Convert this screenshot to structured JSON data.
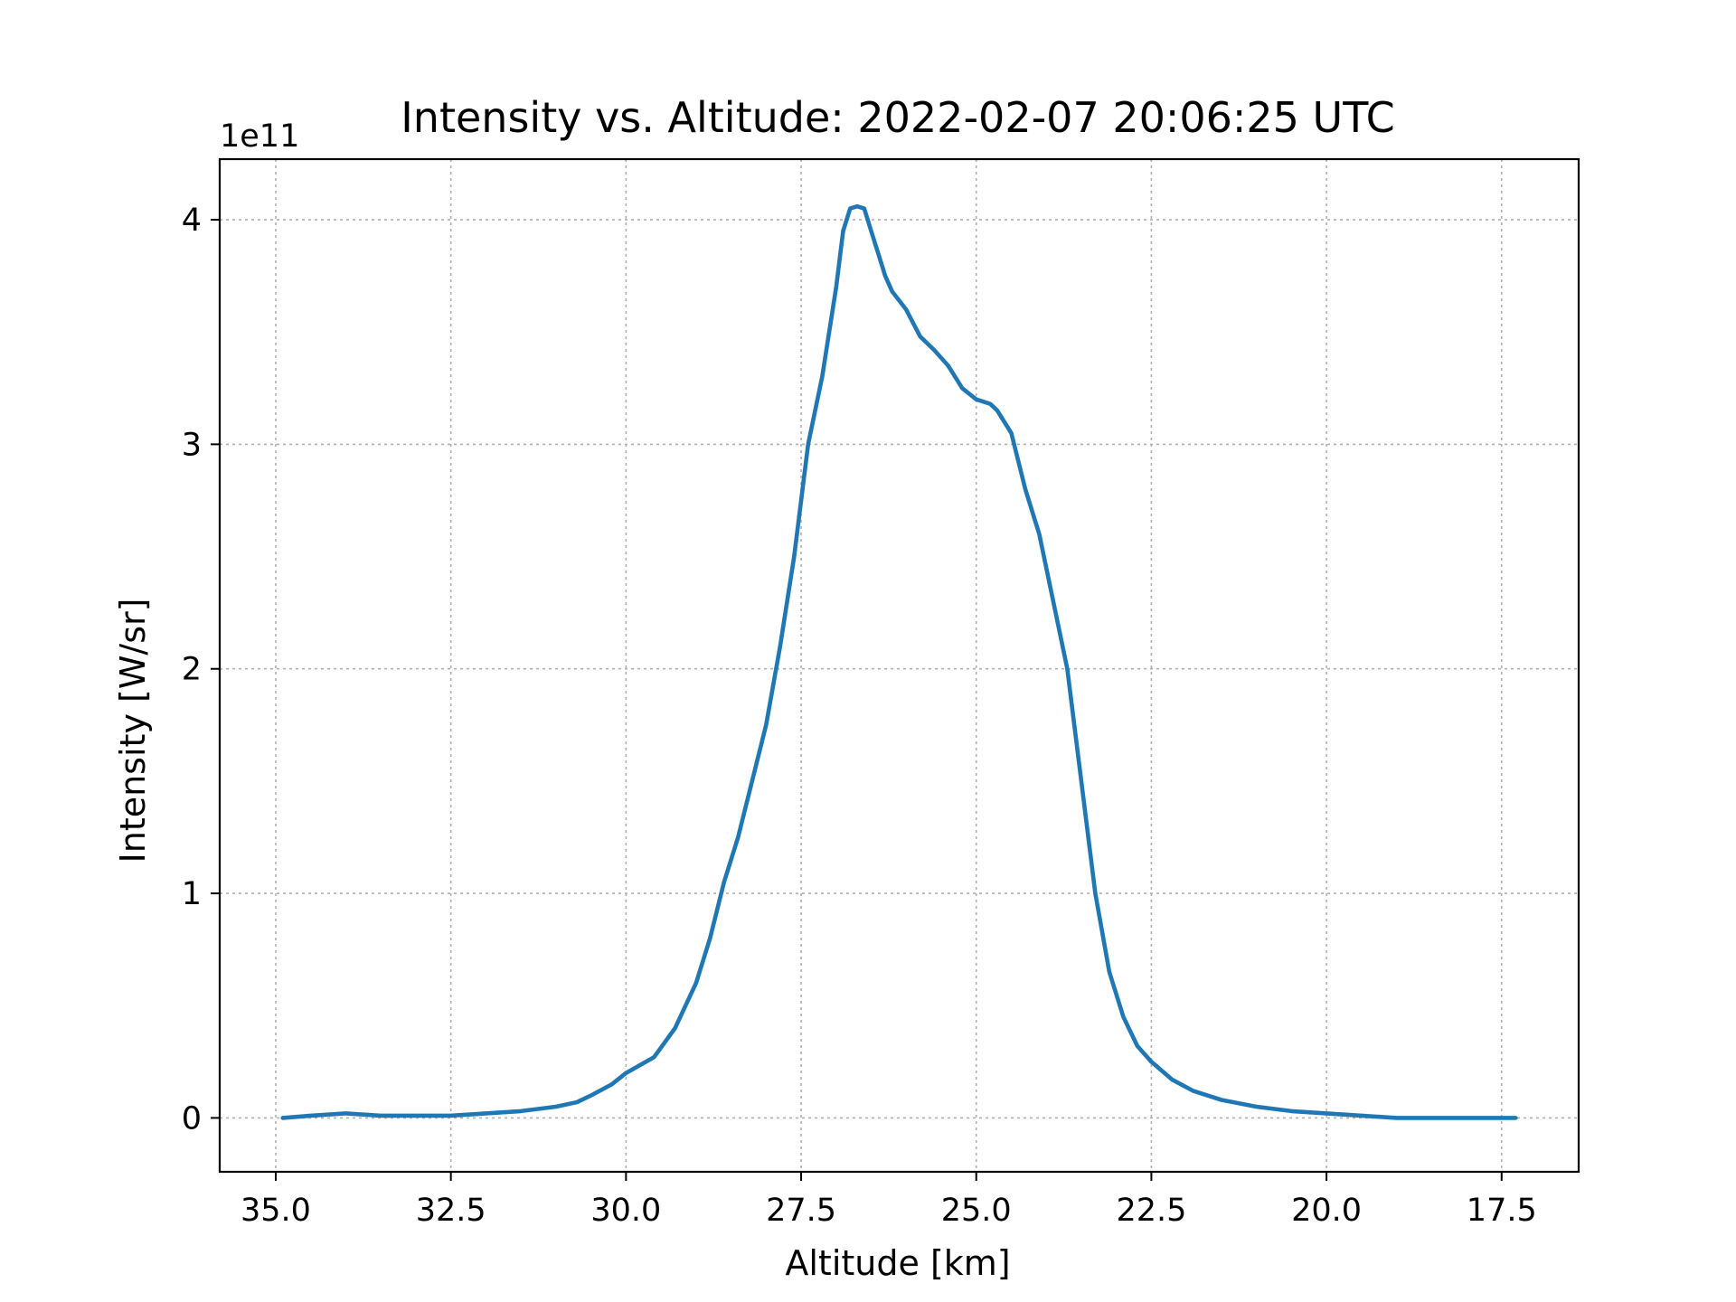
{
  "chart_data": {
    "type": "line",
    "title": "Intensity vs. Altitude: 2022-02-07 20:06:25 UTC",
    "xlabel": "Altitude [km]",
    "ylabel": "Intensity [W/sr]",
    "y_offset_label": "1e11",
    "x_reversed": true,
    "xlim": [
      35.8,
      16.4
    ],
    "ylim": [
      -0.24,
      4.27
    ],
    "x_ticks": [
      35.0,
      32.5,
      30.0,
      27.5,
      25.0,
      22.5,
      20.0,
      17.5
    ],
    "x_tick_labels": [
      "35.0",
      "32.5",
      "30.0",
      "27.5",
      "25.0",
      "22.5",
      "20.0",
      "17.5"
    ],
    "y_ticks": [
      0,
      1,
      2,
      3,
      4
    ],
    "y_tick_labels": [
      "0",
      "1",
      "2",
      "3",
      "4"
    ],
    "grid": true,
    "grid_style": "dotted",
    "series_color": "#1f77b4",
    "series": [
      {
        "x": [
          34.9,
          34.5,
          34.0,
          33.5,
          33.0,
          32.5,
          32.0,
          31.5,
          31.0,
          30.7,
          30.5,
          30.2,
          30.0,
          29.6,
          29.3,
          29.0,
          28.8,
          28.6,
          28.4,
          28.2,
          28.0,
          27.8,
          27.6,
          27.4,
          27.2,
          27.0,
          26.9,
          26.8,
          26.7,
          26.6,
          26.5,
          26.4,
          26.3,
          26.2,
          26.0,
          25.8,
          25.6,
          25.4,
          25.2,
          25.0,
          24.8,
          24.7,
          24.5,
          24.3,
          24.1,
          23.9,
          23.7,
          23.5,
          23.3,
          23.1,
          22.9,
          22.7,
          22.5,
          22.2,
          21.9,
          21.5,
          21.0,
          20.5,
          20.0,
          19.5,
          19.0,
          18.5,
          18.0,
          17.6,
          17.3
        ],
        "y": [
          0.0,
          0.01,
          0.02,
          0.01,
          0.01,
          0.01,
          0.02,
          0.03,
          0.05,
          0.07,
          0.1,
          0.15,
          0.2,
          0.27,
          0.4,
          0.6,
          0.8,
          1.05,
          1.25,
          1.5,
          1.75,
          2.1,
          2.5,
          3.0,
          3.3,
          3.7,
          3.95,
          4.05,
          4.06,
          4.05,
          3.95,
          3.85,
          3.75,
          3.68,
          3.6,
          3.48,
          3.42,
          3.35,
          3.25,
          3.2,
          3.18,
          3.15,
          3.05,
          2.8,
          2.6,
          2.3,
          2.0,
          1.5,
          1.0,
          0.65,
          0.45,
          0.32,
          0.25,
          0.17,
          0.12,
          0.08,
          0.05,
          0.03,
          0.02,
          0.01,
          0.0,
          0.0,
          0.0,
          0.0,
          0.0
        ]
      }
    ]
  }
}
